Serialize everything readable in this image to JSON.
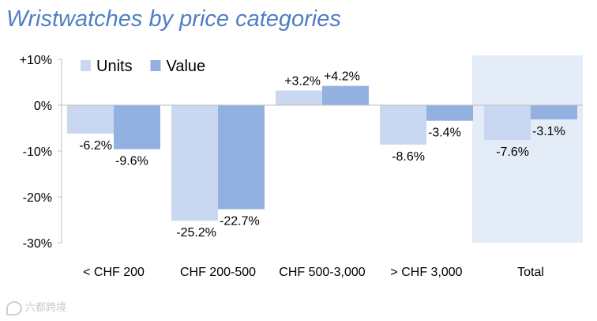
{
  "chart_data": {
    "type": "bar",
    "title": "Wristwatches by price categories",
    "categories": [
      "< CHF 200",
      "CHF 200-500",
      "CHF 500-3,000",
      "> CHF 3,000",
      "Total"
    ],
    "series": [
      {
        "name": "Units",
        "values": [
          -6.2,
          -25.2,
          3.2,
          -8.6,
          -7.6
        ],
        "labels": [
          "-6.2%",
          "-25.2%",
          "+3.2%",
          "-8.6%",
          "-7.6%"
        ],
        "color": "#c9d8f0"
      },
      {
        "name": "Value",
        "values": [
          -9.6,
          -22.7,
          4.2,
          -3.4,
          -3.1
        ],
        "labels": [
          "-9.6%",
          "-22.7%",
          "+4.2%",
          "-3.4%",
          "-3.1%"
        ],
        "color": "#93b1e0"
      }
    ],
    "ylim": [
      -30,
      10
    ],
    "yticks": [
      10,
      0,
      -10,
      -20,
      -30
    ],
    "ytick_labels": [
      "+10%",
      "0%",
      "-10%",
      "-20%",
      "-30%"
    ],
    "legend": "top-left",
    "highlight_category": "Total",
    "highlight_color": "#e3ecf7"
  },
  "watermark": {
    "text": "六都跨境"
  }
}
